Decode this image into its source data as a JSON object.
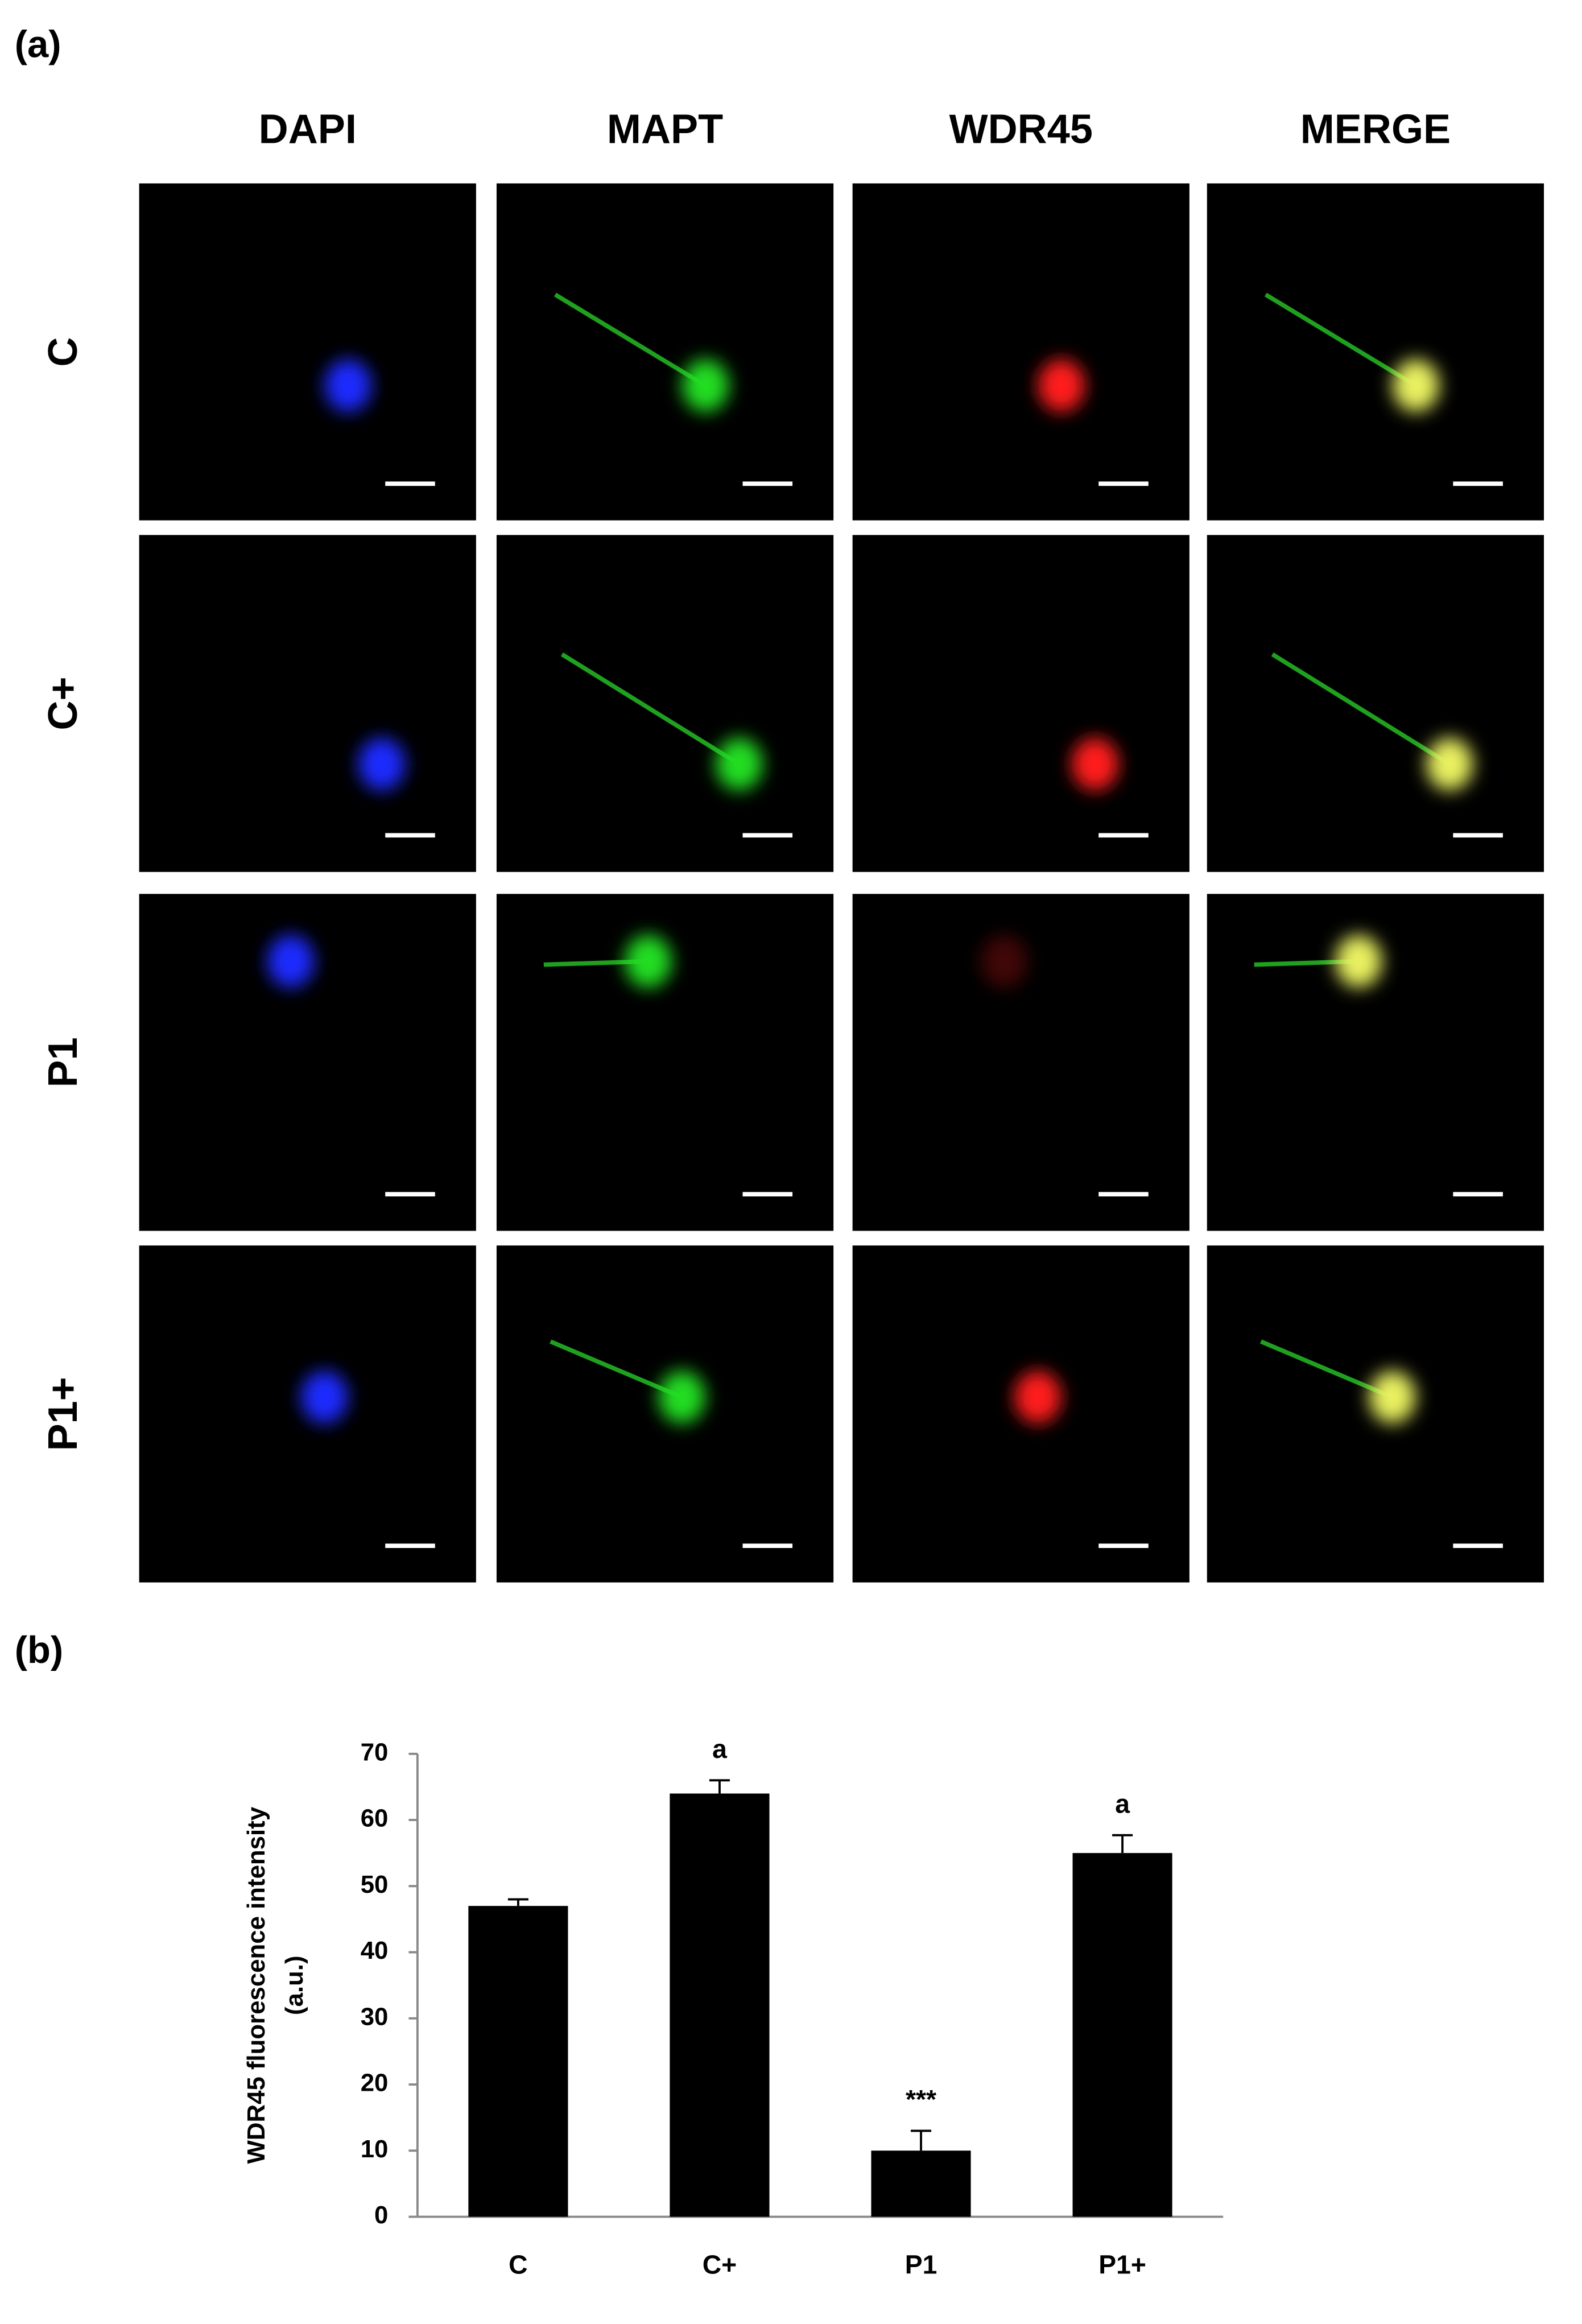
{
  "panel_a": {
    "label": "(a)",
    "columns": [
      "DAPI",
      "MAPT",
      "WDR45",
      "MERGE"
    ],
    "rows": [
      "C",
      "C+",
      "P1",
      "P1+"
    ]
  },
  "chart_data": {
    "type": "bar",
    "panel_label": "(b)",
    "y_label": [
      "WDR45 fluorescence intensity",
      "(a.u.)"
    ],
    "categories": [
      "C",
      "C+",
      "P1",
      "P1+"
    ],
    "values": [
      47,
      64,
      10,
      55
    ],
    "errors": [
      1,
      2,
      3,
      2.7
    ],
    "annotations": [
      {
        "x": "C+",
        "text": "a"
      },
      {
        "x": "P1",
        "text": "***"
      },
      {
        "x": "P1+",
        "text": "a"
      }
    ],
    "color": "#000000",
    "ylim": [
      0,
      70
    ],
    "yticks": [
      0,
      10,
      20,
      30,
      40,
      50,
      60,
      70
    ],
    "grid": false
  }
}
